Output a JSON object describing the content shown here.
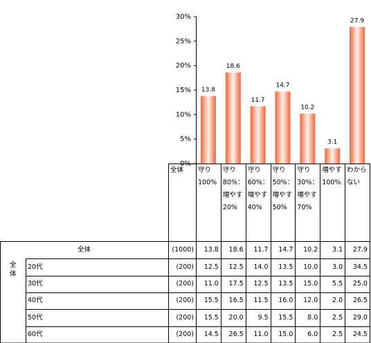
{
  "chart_data": {
    "type": "bar",
    "categories": [
      "守り\n100%",
      "守り\n80%：\n増やす\n20%",
      "守り\n60%：\n増やす\n40%",
      "守り\n50%：\n増やす\n50%",
      "守り\n30%：\n増やす\n70%",
      "増やす\n100%",
      "わから\nない"
    ],
    "values": [
      13.8,
      18.6,
      11.7,
      14.7,
      10.2,
      3.1,
      27.9
    ],
    "color": "#f0663a",
    "ylim": [
      0,
      30
    ],
    "yticks": [
      {
        "value": 0,
        "label": "0%"
      },
      {
        "value": 5,
        "label": "5%"
      },
      {
        "value": 10,
        "label": "10%"
      },
      {
        "value": 15,
        "label": "15%"
      },
      {
        "value": 20,
        "label": "20%"
      },
      {
        "value": 25,
        "label": "25%"
      },
      {
        "value": 30,
        "label": "30%"
      }
    ],
    "grid": false
  },
  "table": {
    "n_header": "全体",
    "group_label": "全体",
    "rows": [
      {
        "label": "全体",
        "n": "(1000)",
        "values": [
          "13.8",
          "18.6",
          "11.7",
          "14.7",
          "10.2",
          "3.1",
          "27.9"
        ]
      },
      {
        "label": "20代",
        "n": "(200)",
        "values": [
          "12.5",
          "12.5",
          "14.0",
          "13.5",
          "10.0",
          "3.0",
          "34.5"
        ]
      },
      {
        "label": "30代",
        "n": "(200)",
        "values": [
          "11.0",
          "17.5",
          "12.5",
          "13.5",
          "15.0",
          "5.5",
          "25.0"
        ]
      },
      {
        "label": "40代",
        "n": "(200)",
        "values": [
          "15.5",
          "16.5",
          "11.5",
          "16.0",
          "12.0",
          "2.0",
          "26.5"
        ]
      },
      {
        "label": "50代",
        "n": "(200)",
        "values": [
          "15.5",
          "20.0",
          "9.5",
          "15.5",
          "8.0",
          "2.5",
          "29.0"
        ]
      },
      {
        "label": "60代",
        "n": "(200)",
        "values": [
          "14.5",
          "26.5",
          "11.0",
          "15.0",
          "6.0",
          "2.5",
          "24.5"
        ]
      }
    ]
  }
}
